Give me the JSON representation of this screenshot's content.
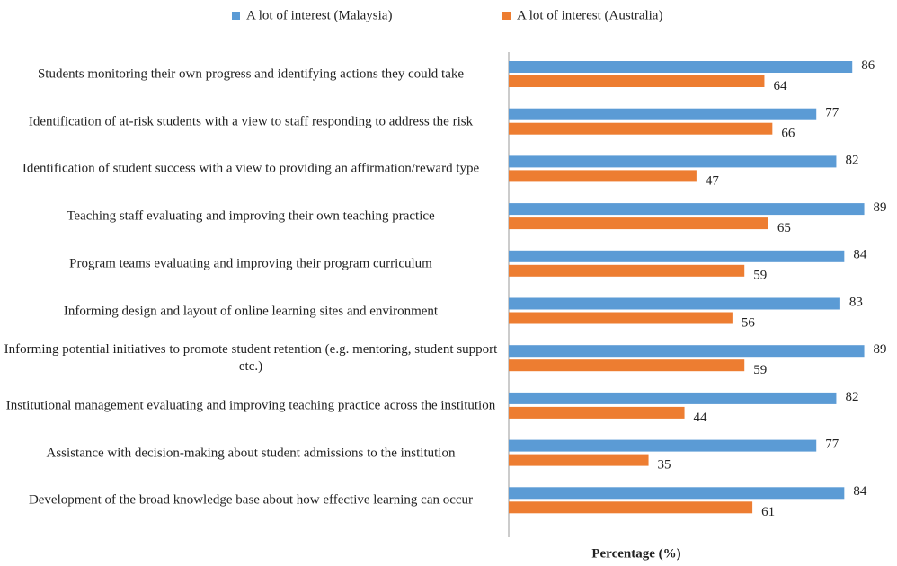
{
  "chart_data": {
    "type": "hbar",
    "x_label": "Percentage (%)",
    "categories": [
      "Students monitoring their own progress and identifying actions they could take",
      "Identification of at-risk students with a view to staff responding to address the risk",
      "Identification of student success with a view to providing an affirmation/reward type",
      "Teaching staff evaluating and improving their own teaching practice",
      "Program teams evaluating and improving their program curriculum",
      "Informing design and layout of online learning sites and environment",
      "Informing  potential initiatives to promote student retention (e.g. mentoring, student support etc.)",
      "Institutional management evaluating and improving teaching practice across the institution",
      "Assistance with decision-making about student admissions to the institution",
      "Development of the broad knowledge base about how effective learning can occur"
    ],
    "series": [
      {
        "name": "A lot of interest (Malaysia)",
        "color": "#5b9bd5",
        "values": [
          86,
          77,
          82,
          89,
          84,
          83,
          89,
          82,
          77,
          84
        ]
      },
      {
        "name": "A lot of interest (Australia)",
        "color": "#ed7d31",
        "values": [
          64,
          66,
          47,
          65,
          59,
          56,
          59,
          44,
          35,
          61
        ]
      }
    ],
    "xlim": [
      0,
      90
    ]
  }
}
